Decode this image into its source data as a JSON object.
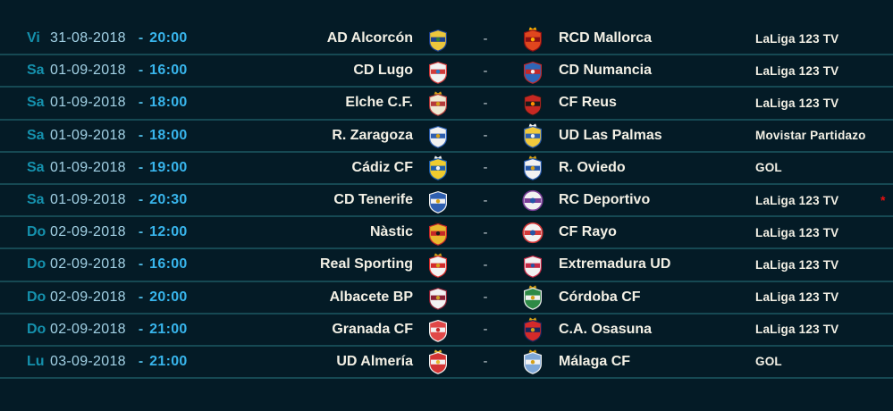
{
  "colors": {
    "background": "#041b26",
    "separator": "#164953",
    "weekday": "#1591ad",
    "date": "#a3d2e6",
    "time_separator": "#4db4dc",
    "time": "#38b5ec",
    "team": "#f3f0e5",
    "versus": "#c2cdd2",
    "tv": "#f3f0e5",
    "note": "#e81010"
  },
  "table": {
    "rows": [
      {
        "weekday": "Vi",
        "date": "31-08-2018",
        "time_separator": "-",
        "time": "20:00",
        "home": {
          "name": "AD Alcorcón",
          "crest": {
            "icon": "ad-alcorcon-crest",
            "shape": "shield",
            "primary": "#ecc73c",
            "secondary": "#1c3f8f",
            "accent": "#2e7d32",
            "crown": false
          }
        },
        "versus": "-",
        "away": {
          "name": "RCD Mallorca",
          "crest": {
            "icon": "rcd-mallorca-crest",
            "shape": "shield",
            "primary": "#e0461e",
            "secondary": "#8a0f14",
            "accent": "#ffb300",
            "crown": true
          }
        },
        "tv_channel": "LaLiga 123 TV",
        "note": ""
      },
      {
        "weekday": "Sa",
        "date": "01-09-2018",
        "time_separator": "-",
        "time": "16:00",
        "home": {
          "name": "CD Lugo",
          "crest": {
            "icon": "cd-lugo-crest",
            "shape": "shield",
            "primary": "#f2f2f2",
            "secondary": "#d23b3b",
            "accent": "#2979c8",
            "crown": false
          }
        },
        "versus": "-",
        "away": {
          "name": "CD Numancia",
          "crest": {
            "icon": "cd-numancia-crest",
            "shape": "shield",
            "primary": "#2e66b8",
            "secondary": "#c62828",
            "accent": "#f2f2f2",
            "crown": false
          }
        },
        "tv_channel": "LaLiga 123 TV",
        "note": ""
      },
      {
        "weekday": "Sa",
        "date": "01-09-2018",
        "time_separator": "-",
        "time": "18:00",
        "home": {
          "name": "Elche C.F.",
          "crest": {
            "icon": "elche-cf-crest",
            "shape": "shield",
            "primary": "#efe9d2",
            "secondary": "#b53a3a",
            "accent": "#d4a017",
            "crown": true
          }
        },
        "versus": "-",
        "away": {
          "name": "CF Reus",
          "crest": {
            "icon": "cf-reus-crest",
            "shape": "shield",
            "primary": "#c62822",
            "secondary": "#1a1a1a",
            "accent": "#ff8f00",
            "crown": false
          }
        },
        "tv_channel": "LaLiga 123 TV",
        "note": ""
      },
      {
        "weekday": "Sa",
        "date": "01-09-2018",
        "time_separator": "-",
        "time": "18:00",
        "home": {
          "name": "R. Zaragoza",
          "crest": {
            "icon": "r-zaragoza-crest",
            "shape": "shield",
            "primary": "#f2f2f2",
            "secondary": "#2e5fb0",
            "accent": "#d4a017",
            "crown": false
          }
        },
        "versus": "-",
        "away": {
          "name": "UD Las Palmas",
          "crest": {
            "icon": "ud-las-palmas-crest",
            "shape": "shield",
            "primary": "#f0c93c",
            "secondary": "#2e5fb0",
            "accent": "#f2f2f2",
            "crown": true
          }
        },
        "tv_channel": "Movistar Partidazo",
        "note": ""
      },
      {
        "weekday": "Sa",
        "date": "01-09-2018",
        "time_separator": "-",
        "time": "19:00",
        "home": {
          "name": "Cádiz CF",
          "crest": {
            "icon": "cadiz-cf-crest",
            "shape": "shield",
            "primary": "#f0cc2e",
            "secondary": "#1f5fae",
            "accent": "#f2f2f2",
            "crown": true
          }
        },
        "versus": "-",
        "away": {
          "name": "R. Oviedo",
          "crest": {
            "icon": "r-oviedo-crest",
            "shape": "shield",
            "primary": "#f2f2f2",
            "secondary": "#2456a8",
            "accent": "#d4a017",
            "crown": true
          }
        },
        "tv_channel": "GOL",
        "note": ""
      },
      {
        "weekday": "Sa",
        "date": "01-09-2018",
        "time_separator": "-",
        "time": "20:30",
        "home": {
          "name": "CD Tenerife",
          "crest": {
            "icon": "cd-tenerife-crest",
            "shape": "shield",
            "primary": "#2e5fb0",
            "secondary": "#f2f2f2",
            "accent": "#d4a017",
            "crown": false
          }
        },
        "versus": "-",
        "away": {
          "name": "RC Deportivo",
          "crest": {
            "icon": "rc-deportivo-crest",
            "shape": "circle",
            "primary": "#f2f2f2",
            "secondary": "#7b3f98",
            "accent": "#2456a8",
            "crown": false
          }
        },
        "tv_channel": "LaLiga 123 TV",
        "note": "*"
      },
      {
        "weekday": "Do",
        "date": "02-09-2018",
        "time_separator": "-",
        "time": "12:00",
        "home": {
          "name": "Nàstic",
          "crest": {
            "icon": "nastic-crest",
            "shape": "shield",
            "primary": "#e8b92e",
            "secondary": "#c62828",
            "accent": "#1a1a1a",
            "crown": true
          }
        },
        "versus": "-",
        "away": {
          "name": "CF Rayo",
          "crest": {
            "icon": "cf-rayo-crest",
            "shape": "circle",
            "primary": "#f2f2f2",
            "secondary": "#d43a3a",
            "accent": "#2456a8",
            "crown": false
          }
        },
        "tv_channel": "LaLiga 123 TV",
        "note": ""
      },
      {
        "weekday": "Do",
        "date": "02-09-2018",
        "time_separator": "-",
        "time": "16:00",
        "home": {
          "name": "Real Sporting",
          "crest": {
            "icon": "real-sporting-crest",
            "shape": "shield",
            "primary": "#f2f2f2",
            "secondary": "#d42a2a",
            "accent": "#d4a017",
            "crown": true
          }
        },
        "versus": "-",
        "away": {
          "name": "Extremadura UD",
          "crest": {
            "icon": "extremadura-ud-crest",
            "shape": "shield",
            "primary": "#f2f2f2",
            "secondary": "#c62846",
            "accent": "#2456a8",
            "crown": false
          }
        },
        "tv_channel": "LaLiga 123 TV",
        "note": ""
      },
      {
        "weekday": "Do",
        "date": "02-09-2018",
        "time_separator": "-",
        "time": "20:00",
        "home": {
          "name": "Albacete BP",
          "crest": {
            "icon": "albacete-bp-crest",
            "shape": "shield",
            "primary": "#f2f2f2",
            "secondary": "#8a1f33",
            "accent": "#c9a227",
            "crown": false
          }
        },
        "versus": "-",
        "away": {
          "name": "Córdoba CF",
          "crest": {
            "icon": "cordoba-cf-crest",
            "shape": "shield",
            "primary": "#2e8a46",
            "secondary": "#f2f2f2",
            "accent": "#d4a017",
            "crown": true
          }
        },
        "tv_channel": "LaLiga 123 TV",
        "note": ""
      },
      {
        "weekday": "Do",
        "date": "02-09-2018",
        "time_separator": "-",
        "time": "21:00",
        "home": {
          "name": "Granada CF",
          "crest": {
            "icon": "granada-cf-crest",
            "shape": "shield",
            "primary": "#e04848",
            "secondary": "#f2f2f2",
            "accent": "#c62828",
            "crown": false
          }
        },
        "versus": "-",
        "away": {
          "name": "C.A. Osasuna",
          "crest": {
            "icon": "ca-osasuna-crest",
            "shape": "shield",
            "primary": "#d42a2a",
            "secondary": "#16265c",
            "accent": "#d4a017",
            "crown": true
          }
        },
        "tv_channel": "LaLiga 123 TV",
        "note": ""
      },
      {
        "weekday": "Lu",
        "date": "03-09-2018",
        "time_separator": "-",
        "time": "21:00",
        "home": {
          "name": "UD Almería",
          "crest": {
            "icon": "ud-almeria-crest",
            "shape": "shield",
            "primary": "#d43434",
            "secondary": "#f2f2f2",
            "accent": "#e8b92e",
            "crown": true
          }
        },
        "versus": "-",
        "away": {
          "name": "Málaga CF",
          "crest": {
            "icon": "malaga-cf-crest",
            "shape": "shield",
            "primary": "#7fa8d8",
            "secondary": "#f2f2f2",
            "accent": "#d4a017",
            "crown": true
          }
        },
        "tv_channel": "GOL",
        "note": ""
      }
    ]
  }
}
